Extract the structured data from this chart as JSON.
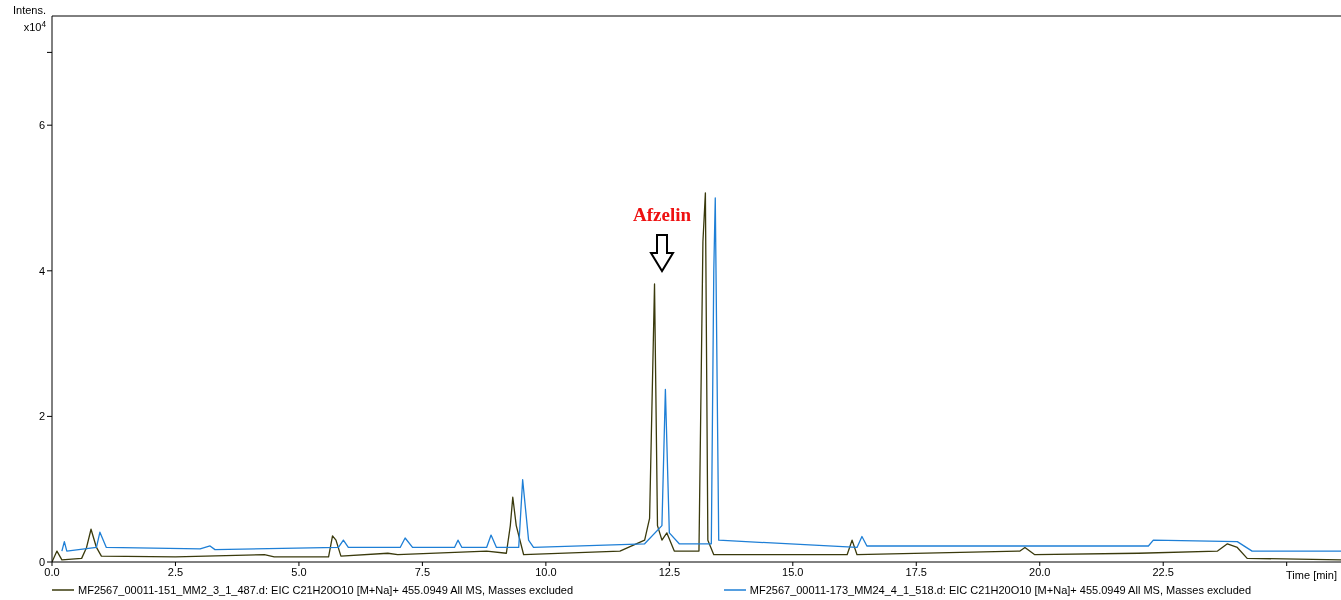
{
  "chart_data": {
    "type": "line",
    "xlabel": "Time [min]",
    "ylabel": "Intens. x10$^{4}$",
    "xlim": [
      0,
      26.1
    ],
    "ylim": [
      0,
      7.5
    ],
    "xticks": [
      {
        "value": 0,
        "label": "0.0"
      },
      {
        "value": 2.5,
        "label": "2.5"
      },
      {
        "value": 5,
        "label": "5.0"
      },
      {
        "value": 7.5,
        "label": "7.5"
      },
      {
        "value": 10,
        "label": "10.0"
      },
      {
        "value": 12.5,
        "label": "12.5"
      },
      {
        "value": 15,
        "label": "15.0"
      },
      {
        "value": 17.5,
        "label": "17.5"
      },
      {
        "value": 20,
        "label": "20.0"
      },
      {
        "value": 22.5,
        "label": "22.5"
      },
      {
        "value": 25,
        "label": null
      }
    ],
    "yticks": [
      0,
      2,
      4,
      6,
      {
        "value": 7,
        "label": null
      }
    ],
    "legend": "bottom",
    "marker": "none",
    "line_style": "solid",
    "annotations": [
      "Afzelin"
    ],
    "series": [
      {
        "name": "MF2567_00011-151_MM2_3_1_487.d: EIC C21H20O10 [M+Na]+ 455.0949 All MS, Masses excluded",
        "color": "#3a3a0c",
        "x": [
          0,
          0.1,
          0.2,
          0.6,
          0.7,
          0.79,
          0.9,
          1.0,
          2.5,
          4.3,
          4.5,
          5.6,
          5.68,
          5.75,
          5.85,
          6.8,
          7.0,
          8.8,
          9.2,
          9.28,
          9.33,
          9.4,
          9.55,
          11.5,
          12.0,
          12.1,
          12.2,
          12.26,
          12.35,
          12.45,
          12.6,
          13.1,
          13.18,
          13.23,
          13.28,
          13.4,
          16.1,
          16.2,
          16.3,
          19.6,
          19.7,
          19.9,
          22.0,
          23.6,
          23.8,
          24.0,
          24.2,
          26.1
        ],
        "values": [
          0,
          0.15,
          0.03,
          0.05,
          0.2,
          0.45,
          0.2,
          0.08,
          0.07,
          0.1,
          0.07,
          0.07,
          0.36,
          0.3,
          0.08,
          0.12,
          0.1,
          0.15,
          0.12,
          0.5,
          0.89,
          0.5,
          0.1,
          0.15,
          0.3,
          0.6,
          3.82,
          0.5,
          0.3,
          0.4,
          0.15,
          0.15,
          4.4,
          5.07,
          0.3,
          0.1,
          0.1,
          0.3,
          0.1,
          0.15,
          0.2,
          0.1,
          0.12,
          0.15,
          0.25,
          0.2,
          0.05,
          0.03
        ]
      },
      {
        "name": "MF2567_00011-173_MM24_4_1_518.d: EIC C21H20O10 [M+Na]+ 455.0949 All MS, Masses excluded",
        "color": "#1e7fd6",
        "x": [
          0.2,
          0.25,
          0.3,
          0.9,
          0.97,
          1.1,
          3.0,
          3.2,
          3.3,
          5.8,
          5.9,
          6.0,
          7.05,
          7.15,
          7.3,
          8.15,
          8.22,
          8.3,
          8.8,
          8.89,
          9.0,
          9.45,
          9.53,
          9.65,
          9.75,
          12.0,
          12.35,
          12.42,
          12.5,
          12.7,
          13.35,
          13.4,
          13.43,
          13.5,
          16.3,
          16.4,
          16.5,
          22.2,
          22.3,
          24.0,
          24.3,
          26.1
        ],
        "values": [
          0.15,
          0.28,
          0.15,
          0.2,
          0.41,
          0.2,
          0.18,
          0.22,
          0.17,
          0.2,
          0.3,
          0.2,
          0.2,
          0.33,
          0.2,
          0.2,
          0.3,
          0.2,
          0.2,
          0.37,
          0.2,
          0.2,
          1.13,
          0.3,
          0.2,
          0.25,
          0.5,
          2.37,
          0.4,
          0.25,
          0.25,
          4.0,
          5.0,
          0.3,
          0.2,
          0.35,
          0.22,
          0.22,
          0.3,
          0.28,
          0.15,
          0.15
        ]
      }
    ]
  }
}
